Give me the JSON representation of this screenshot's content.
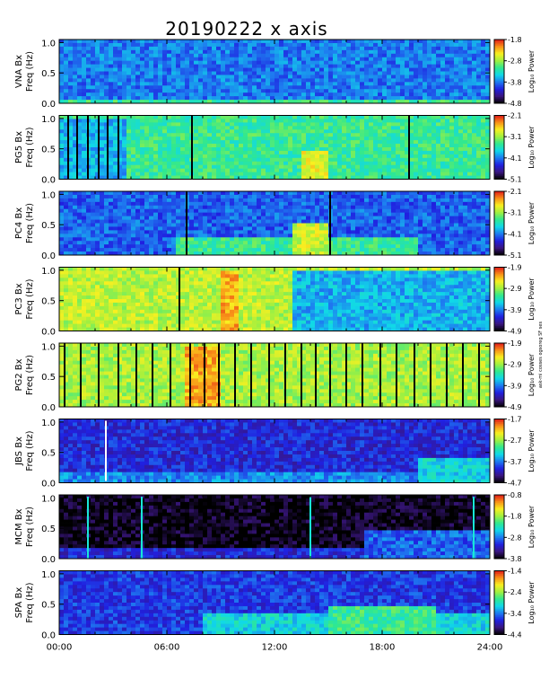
{
  "chart_data": {
    "type": "heatmap",
    "title": "20190222 x axis",
    "credit": "ask-mi cosses ogsoreg SF ses",
    "xlabel": "",
    "xlim": [
      0,
      24
    ],
    "x_ticks": [
      "00:00",
      "06:00",
      "12:00",
      "18:00",
      "24:00"
    ],
    "y_ticks": [
      "0.0",
      "0.5",
      "1.0"
    ],
    "ylim": [
      0.0,
      1.05
    ],
    "colorbar_label": "Log₁₀ Power",
    "colorscale": [
      "#000000",
      "#3a1680",
      "#2020e0",
      "#1e7cf0",
      "#10d8e8",
      "#30e890",
      "#a0f040",
      "#f8f020",
      "#f89018",
      "#e01818"
    ],
    "panels": [
      {
        "id": "vna",
        "label": "VNA Bx",
        "ylabel": "Freq (Hz)",
        "cbar_ticks": [
          "-1.8",
          "-2.8",
          "-3.8",
          "-4.8"
        ],
        "cbar_range": [
          -4.8,
          -1.8
        ],
        "background_level": 0.33,
        "gaps": [],
        "features": [
          {
            "start": 0.0,
            "end": 24.0,
            "freq_max": 0.05,
            "level": 0.55
          }
        ]
      },
      {
        "id": "pg5",
        "label": "PG5 Bx",
        "ylabel": "Freq (Hz)",
        "cbar_ticks": [
          "-2.1",
          "-3.1",
          "-4.1",
          "-5.1"
        ],
        "cbar_range": [
          -5.1,
          -2.1
        ],
        "background_level": 0.55,
        "gaps": [
          0.5,
          1.0,
          1.6,
          2.2,
          2.7,
          3.3,
          7.4,
          19.5
        ],
        "features": [
          {
            "start": 13.5,
            "end": 15.0,
            "freq_max": 0.45,
            "level": 0.75
          },
          {
            "start": 0.0,
            "end": 3.7,
            "freq_max": 1.0,
            "level": 0.4
          }
        ]
      },
      {
        "id": "pc4",
        "label": "PC4 Bx",
        "ylabel": "Freq (Hz)",
        "cbar_ticks": [
          "-2.1",
          "-3.1",
          "-4.1",
          "-5.1"
        ],
        "cbar_range": [
          -5.1,
          -2.1
        ],
        "background_level": 0.3,
        "gaps": [
          7.1,
          15.1
        ],
        "features": [
          {
            "start": 6.5,
            "end": 20.0,
            "freq_max": 0.3,
            "level": 0.55
          },
          {
            "start": 13.0,
            "end": 15.0,
            "freq_max": 0.55,
            "level": 0.72
          }
        ]
      },
      {
        "id": "pc3",
        "label": "PC3 Bx",
        "ylabel": "Freq (Hz)",
        "cbar_ticks": [
          "-1.9",
          "-2.9",
          "-3.9",
          "-4.9"
        ],
        "cbar_range": [
          -4.9,
          -1.9
        ],
        "background_level": 0.7,
        "gaps": [
          6.7
        ],
        "features": [
          {
            "start": 13.0,
            "end": 24.0,
            "freq_max": 1.0,
            "level": 0.4
          },
          {
            "start": 9.0,
            "end": 10.0,
            "freq_max": 1.0,
            "level": 0.85
          }
        ]
      },
      {
        "id": "pg2",
        "label": "PG2 Bx",
        "ylabel": "Freq (Hz)",
        "cbar_ticks": [
          "-1.9",
          "-2.9",
          "-3.9",
          "-4.9"
        ],
        "cbar_range": [
          -4.9,
          -1.9
        ],
        "background_level": 0.68,
        "gaps": [
          0.3,
          1.2,
          2.2,
          3.3,
          4.3,
          5.2,
          6.2,
          7.3,
          8.1,
          8.9,
          9.8,
          10.7,
          11.7,
          12.6,
          13.5,
          14.3,
          15.1,
          16.0,
          16.9,
          17.9,
          18.8,
          19.8,
          20.7,
          21.6,
          22.5,
          23.4
        ],
        "features": [
          {
            "start": 7.0,
            "end": 9.0,
            "freq_max": 1.0,
            "level": 0.85
          }
        ]
      },
      {
        "id": "jbs",
        "label": "JBS Bx",
        "ylabel": "Freq (Hz)",
        "cbar_ticks": [
          "-1.7",
          "-2.7",
          "-3.7",
          "-4.7"
        ],
        "cbar_range": [
          -4.7,
          -1.7
        ],
        "background_level": 0.22,
        "white_lines": [
          2.6
        ],
        "gaps": [],
        "features": [
          {
            "start": 0.0,
            "end": 24.0,
            "freq_max": 0.2,
            "level": 0.35
          },
          {
            "start": 20.0,
            "end": 24.0,
            "freq_max": 0.4,
            "level": 0.45
          }
        ]
      },
      {
        "id": "mcm",
        "label": "MCM Bx",
        "ylabel": "Freq (Hz)",
        "cbar_ticks": [
          "-0.8",
          "-1.8",
          "-2.8",
          "-3.8"
        ],
        "cbar_range": [
          -3.8,
          -0.8
        ],
        "background_level": 0.02,
        "spikes": [
          1.6,
          4.6,
          14.0,
          23.1
        ],
        "gaps": [],
        "features": [
          {
            "start": 0.0,
            "end": 24.0,
            "freq_max": 0.15,
            "level": 0.22
          },
          {
            "start": 17.0,
            "end": 24.0,
            "freq_max": 0.45,
            "level": 0.3
          }
        ]
      },
      {
        "id": "spa",
        "label": "SPA Bx",
        "ylabel": "Freq (Hz)",
        "cbar_ticks": [
          "-1.4",
          "-2.4",
          "-3.4",
          "-4.4"
        ],
        "cbar_range": [
          -4.4,
          -1.4
        ],
        "background_level": 0.25,
        "gaps": [],
        "features": [
          {
            "start": 8.0,
            "end": 24.0,
            "freq_max": 0.35,
            "level": 0.45
          },
          {
            "start": 15.0,
            "end": 21.0,
            "freq_max": 0.45,
            "level": 0.55
          }
        ]
      }
    ]
  }
}
